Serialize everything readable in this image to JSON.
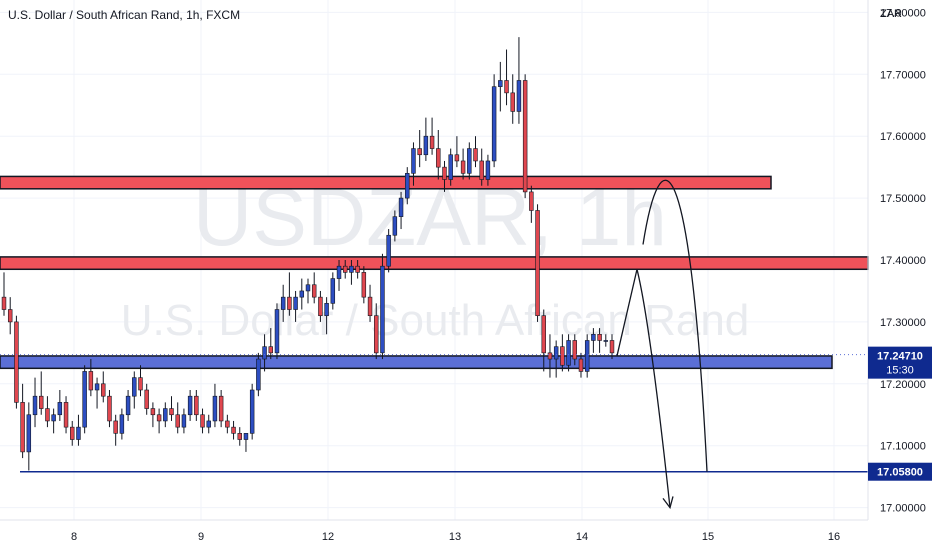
{
  "chart_data": {
    "type": "candlestick",
    "title": "U.S. Dollar / South African Rand, 1h, FXCM",
    "watermark_symbol": "USDZAR, 1h",
    "watermark_name": "U.S. Dollar / South African Rand",
    "currency_label": "ZAR",
    "y_ticks": [
      "17.80000",
      "17.70000",
      "17.60000",
      "17.50000",
      "17.40000",
      "17.30000",
      "17.20000",
      "17.10000",
      "17.00000"
    ],
    "x_ticks": [
      "8",
      "9",
      "12",
      "13",
      "14",
      "15",
      "16"
    ],
    "price_label": "17.24710",
    "price_time": "15:30",
    "level_label": "17.05800",
    "current_price": 17.2471,
    "support_level": 17.058,
    "ylim": [
      16.98,
      17.82
    ],
    "zones": [
      {
        "top": 17.535,
        "bottom": 17.515,
        "color": "#f0525a"
      },
      {
        "top": 17.405,
        "bottom": 17.385,
        "color": "#f0525a"
      },
      {
        "top": 17.245,
        "bottom": 17.225,
        "color": "#5b6fd6"
      }
    ],
    "projection": {
      "path_a": [
        [
          17.24,
          0
        ],
        [
          17.38,
          0.4
        ],
        [
          17.0,
          1.0
        ]
      ],
      "path_b": [
        [
          17.42,
          0
        ],
        [
          17.52,
          0.45
        ],
        [
          17.058,
          1.0
        ]
      ]
    },
    "colors": {
      "up": "#2d4ec2",
      "down": "#e0474f",
      "accent": "#0f2a8f"
    },
    "candles": [
      [
        17.34,
        17.38,
        17.31,
        17.32
      ],
      [
        17.32,
        17.34,
        17.28,
        17.3
      ],
      [
        17.3,
        17.31,
        17.16,
        17.17
      ],
      [
        17.17,
        17.2,
        17.08,
        17.09
      ],
      [
        17.09,
        17.17,
        17.06,
        17.15
      ],
      [
        17.15,
        17.21,
        17.13,
        17.18
      ],
      [
        17.18,
        17.22,
        17.15,
        17.16
      ],
      [
        17.16,
        17.18,
        17.13,
        17.14
      ],
      [
        17.14,
        17.16,
        17.12,
        17.15
      ],
      [
        17.15,
        17.19,
        17.14,
        17.17
      ],
      [
        17.17,
        17.18,
        17.12,
        17.13
      ],
      [
        17.13,
        17.14,
        17.1,
        17.11
      ],
      [
        17.11,
        17.15,
        17.1,
        17.13
      ],
      [
        17.13,
        17.23,
        17.12,
        17.22
      ],
      [
        17.22,
        17.24,
        17.18,
        17.19
      ],
      [
        17.19,
        17.21,
        17.16,
        17.2
      ],
      [
        17.2,
        17.22,
        17.17,
        17.18
      ],
      [
        17.18,
        17.19,
        17.13,
        17.14
      ],
      [
        17.14,
        17.15,
        17.1,
        17.12
      ],
      [
        17.12,
        17.16,
        17.11,
        17.15
      ],
      [
        17.15,
        17.19,
        17.14,
        17.18
      ],
      [
        17.18,
        17.22,
        17.16,
        17.21
      ],
      [
        17.21,
        17.23,
        17.18,
        17.19
      ],
      [
        17.19,
        17.2,
        17.15,
        17.16
      ],
      [
        17.16,
        17.17,
        17.13,
        17.15
      ],
      [
        17.15,
        17.16,
        17.12,
        17.14
      ],
      [
        17.14,
        17.17,
        17.13,
        17.16
      ],
      [
        17.16,
        17.18,
        17.14,
        17.15
      ],
      [
        17.15,
        17.17,
        17.12,
        17.13
      ],
      [
        17.13,
        17.16,
        17.12,
        17.15
      ],
      [
        17.15,
        17.19,
        17.14,
        17.18
      ],
      [
        17.18,
        17.19,
        17.14,
        17.15
      ],
      [
        17.15,
        17.16,
        17.12,
        17.13
      ],
      [
        17.13,
        17.15,
        17.12,
        17.14
      ],
      [
        17.14,
        17.2,
        17.13,
        17.18
      ],
      [
        17.18,
        17.19,
        17.13,
        17.14
      ],
      [
        17.14,
        17.15,
        17.12,
        17.13
      ],
      [
        17.13,
        17.14,
        17.11,
        17.12
      ],
      [
        17.12,
        17.13,
        17.1,
        17.11
      ],
      [
        17.11,
        17.12,
        17.09,
        17.12
      ],
      [
        17.12,
        17.2,
        17.11,
        17.19
      ],
      [
        17.19,
        17.25,
        17.18,
        17.24
      ],
      [
        17.24,
        17.28,
        17.22,
        17.26
      ],
      [
        17.26,
        17.29,
        17.24,
        17.25
      ],
      [
        17.25,
        17.33,
        17.24,
        17.32
      ],
      [
        17.32,
        17.36,
        17.3,
        17.34
      ],
      [
        17.34,
        17.38,
        17.31,
        17.32
      ],
      [
        17.32,
        17.35,
        17.3,
        17.34
      ],
      [
        17.34,
        17.37,
        17.32,
        17.35
      ],
      [
        17.35,
        17.37,
        17.33,
        17.36
      ],
      [
        17.36,
        17.38,
        17.33,
        17.34
      ],
      [
        17.34,
        17.35,
        17.3,
        17.31
      ],
      [
        17.31,
        17.34,
        17.28,
        17.33
      ],
      [
        17.33,
        17.38,
        17.32,
        17.37
      ],
      [
        17.37,
        17.4,
        17.35,
        17.39
      ],
      [
        17.39,
        17.4,
        17.37,
        17.38
      ],
      [
        17.38,
        17.4,
        17.36,
        17.39
      ],
      [
        17.39,
        17.4,
        17.37,
        17.38
      ],
      [
        17.38,
        17.39,
        17.33,
        17.34
      ],
      [
        17.34,
        17.36,
        17.3,
        17.31
      ],
      [
        17.31,
        17.33,
        17.24,
        17.25
      ],
      [
        17.25,
        17.41,
        17.24,
        17.39
      ],
      [
        17.39,
        17.45,
        17.38,
        17.44
      ],
      [
        17.44,
        17.48,
        17.43,
        17.47
      ],
      [
        17.47,
        17.51,
        17.45,
        17.5
      ],
      [
        17.5,
        17.55,
        17.49,
        17.54
      ],
      [
        17.54,
        17.59,
        17.52,
        17.58
      ],
      [
        17.58,
        17.61,
        17.55,
        17.57
      ],
      [
        17.57,
        17.63,
        17.56,
        17.6
      ],
      [
        17.6,
        17.63,
        17.57,
        17.58
      ],
      [
        17.58,
        17.61,
        17.53,
        17.55
      ],
      [
        17.55,
        17.56,
        17.51,
        17.53
      ],
      [
        17.53,
        17.58,
        17.52,
        17.57
      ],
      [
        17.57,
        17.6,
        17.55,
        17.56
      ],
      [
        17.56,
        17.58,
        17.53,
        17.54
      ],
      [
        17.54,
        17.59,
        17.53,
        17.58
      ],
      [
        17.58,
        17.6,
        17.55,
        17.56
      ],
      [
        17.56,
        17.58,
        17.52,
        17.53
      ],
      [
        17.53,
        17.57,
        17.52,
        17.56
      ],
      [
        17.56,
        17.7,
        17.55,
        17.68
      ],
      [
        17.68,
        17.72,
        17.64,
        17.69
      ],
      [
        17.69,
        17.74,
        17.65,
        17.67
      ],
      [
        17.67,
        17.7,
        17.62,
        17.64
      ],
      [
        17.64,
        17.76,
        17.62,
        17.69
      ],
      [
        17.69,
        17.7,
        17.5,
        17.51
      ],
      [
        17.51,
        17.52,
        17.46,
        17.48
      ],
      [
        17.48,
        17.49,
        17.3,
        17.31
      ],
      [
        17.31,
        17.32,
        17.22,
        17.25
      ],
      [
        17.25,
        17.28,
        17.21,
        17.24
      ],
      [
        17.24,
        17.27,
        17.21,
        17.26
      ],
      [
        17.26,
        17.28,
        17.22,
        17.23
      ],
      [
        17.23,
        17.28,
        17.22,
        17.27
      ],
      [
        17.27,
        17.28,
        17.23,
        17.24
      ],
      [
        17.24,
        17.25,
        17.21,
        17.22
      ],
      [
        17.22,
        17.28,
        17.21,
        17.27
      ],
      [
        17.27,
        17.29,
        17.25,
        17.28
      ],
      [
        17.28,
        17.29,
        17.25,
        17.27
      ],
      [
        17.27,
        17.28,
        17.26,
        17.27
      ],
      [
        17.27,
        17.28,
        17.24,
        17.25
      ]
    ]
  }
}
